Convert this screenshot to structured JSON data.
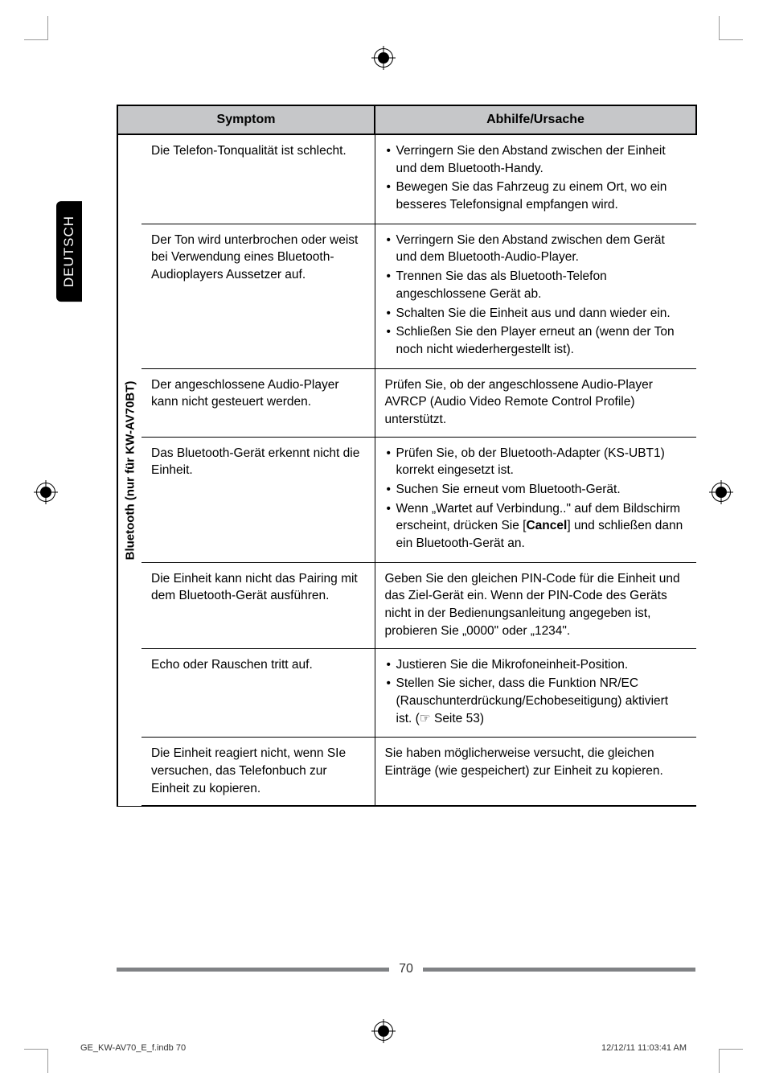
{
  "page": {
    "language_tab": "DEUTSCH",
    "side_label": "Bluetooth (nur für KW-AV70BT)",
    "page_number": "70",
    "footer_left": "GE_KW-AV70_E_f.indb   70",
    "footer_right": "12/12/11   11:03:41 AM"
  },
  "table": {
    "headers": {
      "symptom": "Symptom",
      "remedy": "Abhilfe/Ursache"
    },
    "header_bg": "#c6c7c9",
    "border_color": "#000000",
    "font_size": 15.5,
    "rows": [
      {
        "symptom": "Die Telefon-Tonqualität ist schlecht.",
        "remedy_items": [
          "Verringern Sie den Abstand zwischen der Einheit und dem Bluetooth-Handy.",
          "Bewegen Sie das Fahrzeug zu einem Ort, wo ein besseres Telefonsignal empfangen wird."
        ]
      },
      {
        "symptom": "Der Ton wird unterbrochen oder weist bei Verwendung eines Bluetooth-Audioplayers Aussetzer auf.",
        "remedy_items": [
          "Verringern Sie den Abstand zwischen dem Gerät und dem Bluetooth-Audio-Player.",
          "Trennen Sie das als Bluetooth-Telefon angeschlossene Gerät ab.",
          "Schalten Sie die Einheit aus und dann wieder ein.",
          "Schließen Sie den Player erneut an (wenn der Ton noch nicht wiederhergestellt ist)."
        ]
      },
      {
        "symptom": "Der angeschlossene Audio-Player kann nicht gesteuert werden.",
        "remedy_text": "Prüfen Sie, ob der angeschlossene Audio-Player AVRCP (Audio Video Remote Control Profile) unterstützt."
      },
      {
        "symptom": "Das Bluetooth-Gerät erkennt nicht die Einheit.",
        "remedy_items": [
          "Prüfen Sie, ob der Bluetooth-Adapter (KS-UBT1) korrekt eingesetzt ist.",
          "Suchen Sie erneut vom Bluetooth-Gerät.",
          "Wenn „Wartet auf Verbindung..\" auf dem Bildschirm erscheint, drücken Sie [<b>Cancel</b>] und schließen dann ein Bluetooth-Gerät an."
        ]
      },
      {
        "symptom": "Die Einheit kann nicht das Pairing mit dem Bluetooth-Gerät ausführen.",
        "remedy_text": "Geben Sie den gleichen PIN-Code für die Einheit und das Ziel-Gerät ein. Wenn der PIN-Code des Geräts nicht in der Bedienungsanleitung angegeben ist, probieren Sie „0000\" oder „1234\"."
      },
      {
        "symptom": "Echo oder Rauschen tritt auf.",
        "remedy_items": [
          "Justieren Sie die Mikrofoneinheit-Position.",
          "Stellen Sie sicher, dass die Funktion NR/EC (Rauschunterdrückung/Echobeseitigung) aktiviert ist. (☞ Seite 53)"
        ]
      },
      {
        "symptom": "Die Einheit reagiert nicht, wenn SIe versuchen, das Telefonbuch zur Einheit zu kopieren.",
        "remedy_text": "Sie haben möglicherweise versucht, die gleichen Einträge (wie gespeichert) zur Einheit zu kopieren."
      }
    ]
  }
}
